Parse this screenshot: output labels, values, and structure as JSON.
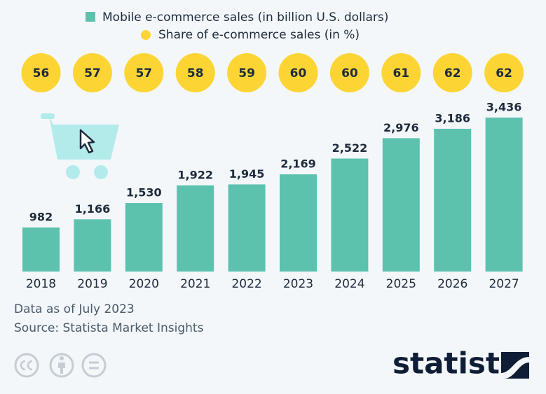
{
  "chart_data": {
    "type": "bar",
    "categories": [
      "2018",
      "2019",
      "2020",
      "2021",
      "2022",
      "2023",
      "2024",
      "2025",
      "2026",
      "2027"
    ],
    "series": [
      {
        "name": "Mobile e-commerce sales (in billion U.S. dollars)",
        "color": "#5cc2ae",
        "values": [
          982,
          1166,
          1530,
          1922,
          1945,
          2169,
          2522,
          2976,
          3186,
          3436
        ],
        "value_labels": [
          "982",
          "1,166",
          "1,530",
          "1,922",
          "1,945",
          "2,169",
          "2,522",
          "2,976",
          "3,186",
          "3,436"
        ]
      },
      {
        "name": "Share of e-commerce sales (in %)",
        "color": "#fcd535",
        "values": [
          56,
          57,
          57,
          58,
          59,
          60,
          60,
          61,
          62,
          62
        ]
      }
    ],
    "notes": [
      "Data as of July 2023",
      "Source: Statista Market Insights"
    ],
    "brand": "statista"
  }
}
